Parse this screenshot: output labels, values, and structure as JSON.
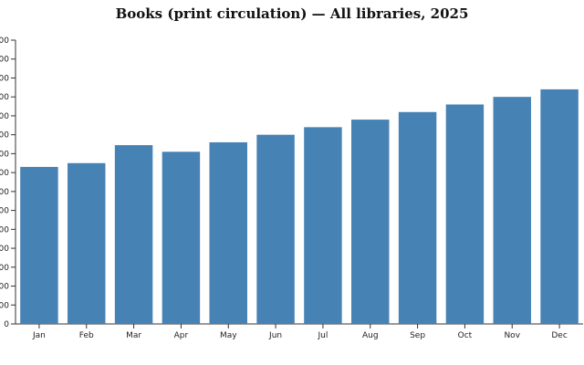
{
  "chart_data": {
    "type": "bar",
    "title": "Books (print circulation) — All libraries, 2025",
    "xlabel": "",
    "ylabel": "",
    "categories": [
      "Jan",
      "Feb",
      "Mar",
      "Apr",
      "May",
      "Jun",
      "Jul",
      "Aug",
      "Sep",
      "Oct",
      "Nov",
      "Dec"
    ],
    "values": [
      8300,
      8500,
      9450,
      9100,
      9600,
      10000,
      10400,
      10800,
      11200,
      11600,
      12000,
      12400
    ],
    "ylim": [
      0,
      15000
    ],
    "ytick_step": 1000,
    "bar_color": "#4682b4",
    "grid": false,
    "legend": "none"
  }
}
